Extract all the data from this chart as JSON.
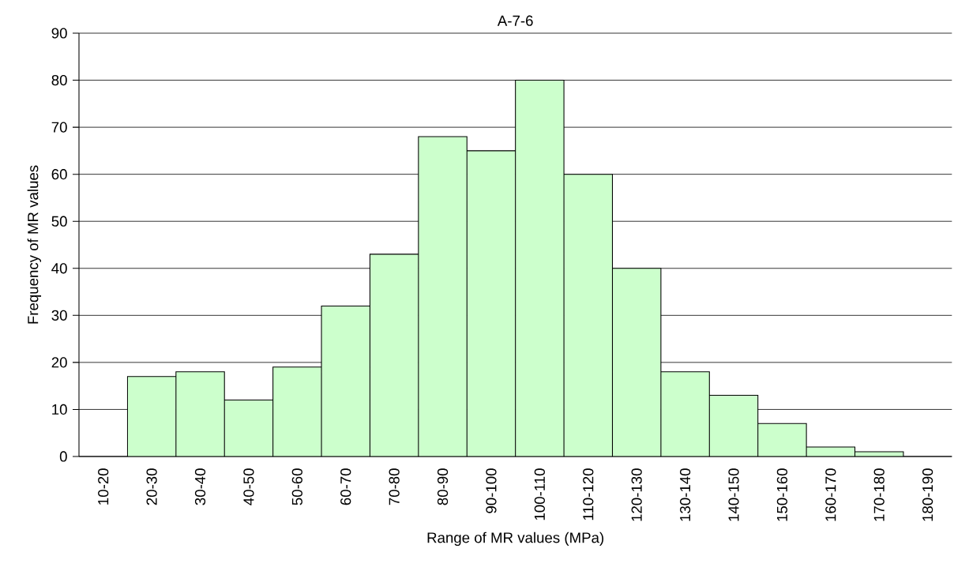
{
  "chart_data": {
    "type": "bar",
    "title": "A-7-6",
    "xlabel": "Range of MR values (MPa)",
    "ylabel": "Frequency of MR values",
    "categories": [
      "10-20",
      "20-30",
      "30-40",
      "40-50",
      "50-60",
      "60-70",
      "70-80",
      "80-90",
      "90-100",
      "100-110",
      "110-120",
      "120-130",
      "130-140",
      "140-150",
      "150-160",
      "160-170",
      "170-180",
      "180-190"
    ],
    "values": [
      null,
      17,
      18,
      12,
      19,
      32,
      43,
      68,
      65,
      80,
      60,
      40,
      18,
      13,
      7,
      2,
      1,
      null
    ],
    "color": "#ccffcc",
    "ylim": [
      0,
      90
    ],
    "yticks": [
      0,
      10,
      20,
      30,
      40,
      50,
      60,
      70,
      80,
      90
    ],
    "grid": "y"
  }
}
